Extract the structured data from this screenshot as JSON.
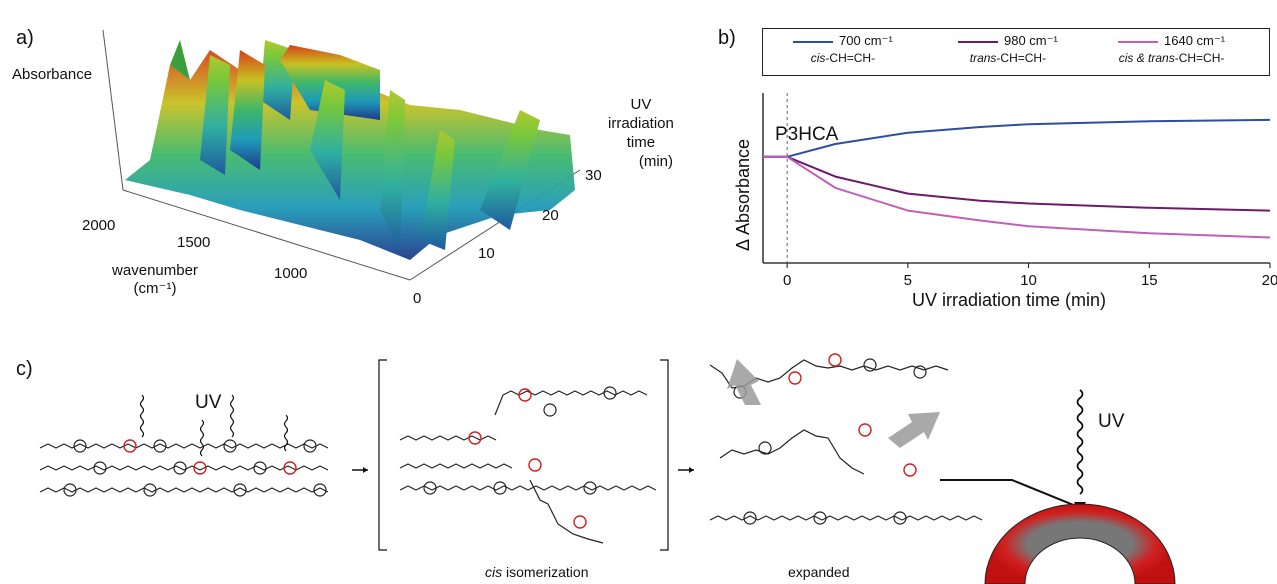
{
  "panel_a": {
    "letter": "a)",
    "z_label": "Absorbance",
    "x_label_line1": "wavenumber",
    "x_label_line2": "(cm⁻¹)",
    "x_ticks": [
      "2000",
      "1500",
      "1000"
    ],
    "y_label_lines": [
      "UV",
      "irradiation",
      "time",
      "(min)"
    ],
    "y_ticks": [
      "0",
      "10",
      "20",
      "30"
    ]
  },
  "panel_b": {
    "letter": "b)",
    "sample_label": "P3HCA",
    "legend": [
      {
        "value": "700 cm⁻¹",
        "prefix_italic": "cis",
        "suffix": "-CH=CH-",
        "color": "#2b4fa0"
      },
      {
        "value": "980 cm⁻¹",
        "prefix_italic": "trans",
        "suffix": "-CH=CH-",
        "color": "#6d1a6a"
      },
      {
        "value": "1640 cm⁻¹",
        "prefix_italic": "cis & trans",
        "suffix": "-CH=CH-",
        "color": "#c060b8"
      }
    ]
  },
  "chart_data": {
    "type": "line",
    "xlabel": "UV irradiation time (min)",
    "ylabel": "Δ Absorbance",
    "x_ticks": [
      "0",
      "5",
      "10",
      "15",
      "20"
    ],
    "xlim": [
      -1,
      20
    ],
    "series": [
      {
        "name": "700 cm⁻¹",
        "x": [
          -1,
          0,
          2,
          5,
          8,
          10,
          15,
          20
        ],
        "values": [
          0,
          0,
          0.09,
          0.17,
          0.21,
          0.23,
          0.25,
          0.26
        ]
      },
      {
        "name": "980 cm⁻¹",
        "x": [
          -1,
          0,
          2,
          5,
          8,
          10,
          15,
          20
        ],
        "values": [
          0,
          0,
          -0.14,
          -0.26,
          -0.31,
          -0.33,
          -0.36,
          -0.38
        ]
      },
      {
        "name": "1640 cm⁻¹",
        "x": [
          -1,
          0,
          2,
          5,
          8,
          10,
          15,
          20
        ],
        "values": [
          0,
          0,
          -0.22,
          -0.38,
          -0.45,
          -0.49,
          -0.54,
          -0.57
        ]
      }
    ]
  },
  "panel_c": {
    "letter": "c)",
    "uv_label": "UV",
    "middle_caption_italic": "cis",
    "middle_caption_rest": " isomerization",
    "right_caption": "expanded",
    "ring_uv_label": "UV"
  }
}
